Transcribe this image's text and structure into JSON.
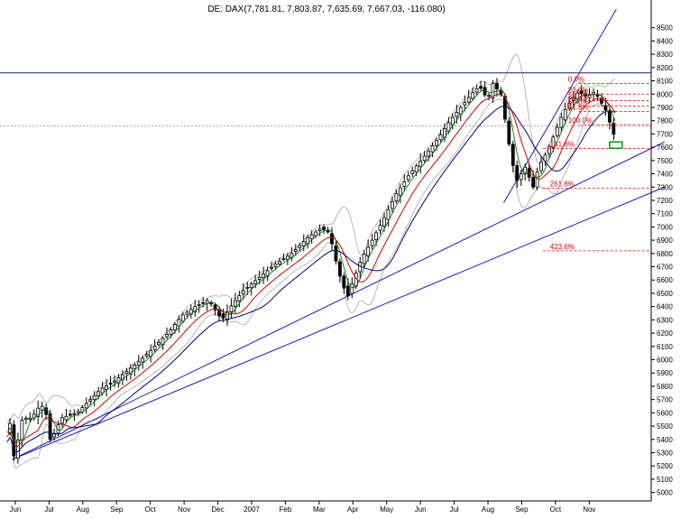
{
  "chart_data": {
    "type": "candlestick",
    "title": "DE: DAX(7,781.81, 7,803.87, 7,635.69, 7,667.03, -116.080)",
    "ylim": [
      4950,
      8600
    ],
    "y_ticks": [
      5000,
      5100,
      5200,
      5300,
      5400,
      5500,
      5600,
      5700,
      5800,
      5900,
      6000,
      6100,
      6200,
      6300,
      6400,
      6500,
      6600,
      6700,
      6800,
      6900,
      7000,
      7100,
      7200,
      7300,
      7400,
      7500,
      7600,
      7700,
      7800,
      7900,
      8000,
      8100,
      8200,
      8300,
      8400,
      8500
    ],
    "x_labels": [
      "Jun",
      "Jul",
      "Aug",
      "Sep",
      "Oct",
      "Nov",
      "Dec",
      "2007",
      "Feb",
      "Mar",
      "Apr",
      "May",
      "Jun",
      "Jul",
      "Aug",
      "Sep",
      "Oct",
      "Nov"
    ],
    "grid": false,
    "colors": {
      "candle": "#000000",
      "ma_short": "#008000",
      "ma_mid": "#d00000",
      "ma_long": "#000080",
      "bands": "#a8a8a8",
      "trendline": "#1a1acc",
      "fib": "#e00000",
      "box": "#00a000"
    },
    "price_path": [
      {
        "t": 0,
        "v": 5450
      },
      {
        "t": 2,
        "v": 5520
      },
      {
        "t": 4,
        "v": 5300
      },
      {
        "t": 6,
        "v": 5250
      },
      {
        "t": 10,
        "v": 5540
      },
      {
        "t": 14,
        "v": 5560
      },
      {
        "t": 18,
        "v": 5560
      },
      {
        "t": 24,
        "v": 5650
      },
      {
        "t": 28,
        "v": 5650
      },
      {
        "t": 32,
        "v": 5400
      },
      {
        "t": 36,
        "v": 5460
      },
      {
        "t": 40,
        "v": 5560
      },
      {
        "t": 46,
        "v": 5580
      },
      {
        "t": 52,
        "v": 5600
      },
      {
        "t": 60,
        "v": 5680
      },
      {
        "t": 70,
        "v": 5780
      },
      {
        "t": 80,
        "v": 5840
      },
      {
        "t": 90,
        "v": 5920
      },
      {
        "t": 100,
        "v": 6000
      },
      {
        "t": 110,
        "v": 6100
      },
      {
        "t": 120,
        "v": 6200
      },
      {
        "t": 130,
        "v": 6330
      },
      {
        "t": 140,
        "v": 6400
      },
      {
        "t": 150,
        "v": 6450
      },
      {
        "t": 160,
        "v": 6300
      },
      {
        "t": 168,
        "v": 6420
      },
      {
        "t": 176,
        "v": 6520
      },
      {
        "t": 188,
        "v": 6620
      },
      {
        "t": 200,
        "v": 6720
      },
      {
        "t": 212,
        "v": 6800
      },
      {
        "t": 224,
        "v": 6920
      },
      {
        "t": 234,
        "v": 6990
      },
      {
        "t": 240,
        "v": 6960
      },
      {
        "t": 246,
        "v": 6700
      },
      {
        "t": 250,
        "v": 6560
      },
      {
        "t": 254,
        "v": 6480
      },
      {
        "t": 258,
        "v": 6600
      },
      {
        "t": 264,
        "v": 6760
      },
      {
        "t": 272,
        "v": 6900
      },
      {
        "t": 280,
        "v": 7050
      },
      {
        "t": 290,
        "v": 7250
      },
      {
        "t": 300,
        "v": 7400
      },
      {
        "t": 310,
        "v": 7520
      },
      {
        "t": 320,
        "v": 7650
      },
      {
        "t": 330,
        "v": 7800
      },
      {
        "t": 338,
        "v": 7900
      },
      {
        "t": 346,
        "v": 8000
      },
      {
        "t": 352,
        "v": 8060
      },
      {
        "t": 358,
        "v": 7960
      },
      {
        "t": 362,
        "v": 8080
      },
      {
        "t": 368,
        "v": 8000
      },
      {
        "t": 372,
        "v": 7750
      },
      {
        "t": 376,
        "v": 7500
      },
      {
        "t": 380,
        "v": 7350
      },
      {
        "t": 386,
        "v": 7450
      },
      {
        "t": 392,
        "v": 7300
      },
      {
        "t": 396,
        "v": 7450
      },
      {
        "t": 402,
        "v": 7560
      },
      {
        "t": 408,
        "v": 7700
      },
      {
        "t": 414,
        "v": 7850
      },
      {
        "t": 420,
        "v": 7950
      },
      {
        "t": 426,
        "v": 8020
      },
      {
        "t": 432,
        "v": 7980
      },
      {
        "t": 438,
        "v": 8020
      },
      {
        "t": 442,
        "v": 7950
      },
      {
        "t": 446,
        "v": 7880
      },
      {
        "t": 450,
        "v": 7760
      },
      {
        "t": 453,
        "v": 7667
      }
    ],
    "resistance_level": 8160,
    "dotted_level": 7760,
    "trendlines": [
      {
        "start": {
          "t": 4,
          "v": 5250
        },
        "end": {
          "t": 490,
          "v": 7640
        }
      },
      {
        "start": {
          "t": 4,
          "v": 5250
        },
        "end": {
          "t": 490,
          "v": 7300
        }
      },
      {
        "start": {
          "t": 370,
          "v": 7180
        },
        "end": {
          "t": 454,
          "v": 8640
        }
      }
    ],
    "fibonacci": {
      "levels": [
        {
          "label": "0.0%",
          "value": 8080
        },
        {
          "label": "23.6%",
          "value": 8000
        },
        {
          "label": "38.2%",
          "value": 7950
        },
        {
          "label": "50.0%",
          "value": 7910
        },
        {
          "label": "61.8%",
          "value": 7870
        },
        {
          "label": "100.0%",
          "value": 7770
        },
        {
          "label": "161.8%",
          "value": 7590
        },
        {
          "label": "261.8%",
          "value": 7290
        },
        {
          "label": "423.6%",
          "value": 6820
        }
      ]
    },
    "candles": [
      {
        "o": 5470,
        "h": 5500,
        "l": 5380,
        "c": 5400
      },
      {
        "o": 5400,
        "h": 5480,
        "l": 5360,
        "c": 5450
      },
      {
        "o": 5450,
        "h": 5620,
        "l": 5440,
        "c": 5560
      },
      {
        "o": 5560,
        "h": 5700,
        "l": 5540,
        "c": 5650
      },
      {
        "o": 5650,
        "h": 5680,
        "l": 5580,
        "c": 5600
      },
      {
        "o": 5600,
        "h": 5720,
        "l": 5600,
        "c": 5700
      },
      {
        "o": 5700,
        "h": 5760,
        "l": 5640,
        "c": 5660
      },
      {
        "o": 5660,
        "h": 5820,
        "l": 5650,
        "c": 5800
      },
      {
        "o": 5800,
        "h": 5860,
        "l": 5760,
        "c": 5840
      },
      {
        "o": 5840,
        "h": 5900,
        "l": 5800,
        "c": 5870
      },
      {
        "o": 5870,
        "h": 5960,
        "l": 5850,
        "c": 5940
      },
      {
        "o": 5940,
        "h": 6020,
        "l": 5920,
        "c": 6000
      },
      {
        "o": 6000,
        "h": 6080,
        "l": 5980,
        "c": 6060
      },
      {
        "o": 6060,
        "h": 6160,
        "l": 6040,
        "c": 6140
      },
      {
        "o": 6140,
        "h": 6230,
        "l": 6120,
        "c": 6200
      },
      {
        "o": 6200,
        "h": 6320,
        "l": 6180,
        "c": 6300
      },
      {
        "o": 6300,
        "h": 6420,
        "l": 6280,
        "c": 6390
      },
      {
        "o": 6390,
        "h": 6470,
        "l": 6360,
        "c": 6440
      },
      {
        "o": 6440,
        "h": 6480,
        "l": 6280,
        "c": 6320
      },
      {
        "o": 6320,
        "h": 6470,
        "l": 6300,
        "c": 6450
      },
      {
        "o": 6450,
        "h": 6560,
        "l": 6430,
        "c": 6540
      },
      {
        "o": 6540,
        "h": 6680,
        "l": 6520,
        "c": 6660
      },
      {
        "o": 6660,
        "h": 6760,
        "l": 6640,
        "c": 6740
      },
      {
        "o": 6740,
        "h": 6840,
        "l": 6720,
        "c": 6820
      },
      {
        "o": 6820,
        "h": 6960,
        "l": 6800,
        "c": 6940
      },
      {
        "o": 6940,
        "h": 7040,
        "l": 6920,
        "c": 7000
      },
      {
        "o": 7000,
        "h": 7020,
        "l": 6700,
        "c": 6750
      },
      {
        "o": 6750,
        "h": 6780,
        "l": 6460,
        "c": 6520
      },
      {
        "o": 6520,
        "h": 6700,
        "l": 6480,
        "c": 6680
      },
      {
        "o": 6680,
        "h": 6900,
        "l": 6660,
        "c": 6880
      },
      {
        "o": 6880,
        "h": 7100,
        "l": 6860,
        "c": 7080
      },
      {
        "o": 7080,
        "h": 7300,
        "l": 7060,
        "c": 7280
      },
      {
        "o": 7280,
        "h": 7460,
        "l": 7260,
        "c": 7440
      },
      {
        "o": 7440,
        "h": 7600,
        "l": 7420,
        "c": 7580
      },
      {
        "o": 7580,
        "h": 7760,
        "l": 7560,
        "c": 7740
      },
      {
        "o": 7740,
        "h": 7920,
        "l": 7720,
        "c": 7900
      },
      {
        "o": 7900,
        "h": 8080,
        "l": 7880,
        "c": 8040
      },
      {
        "o": 8040,
        "h": 8100,
        "l": 7880,
        "c": 7920
      },
      {
        "o": 7920,
        "h": 8160,
        "l": 7900,
        "c": 8080
      },
      {
        "o": 8080,
        "h": 8120,
        "l": 7700,
        "c": 7760
      },
      {
        "o": 7760,
        "h": 7800,
        "l": 7300,
        "c": 7380
      },
      {
        "o": 7380,
        "h": 7560,
        "l": 7220,
        "c": 7460
      },
      {
        "o": 7460,
        "h": 7500,
        "l": 7280,
        "c": 7320
      },
      {
        "o": 7320,
        "h": 7600,
        "l": 7300,
        "c": 7560
      },
      {
        "o": 7560,
        "h": 7800,
        "l": 7540,
        "c": 7780
      },
      {
        "o": 7780,
        "h": 7980,
        "l": 7760,
        "c": 7960
      },
      {
        "o": 7960,
        "h": 8060,
        "l": 7940,
        "c": 8020
      },
      {
        "o": 8020,
        "h": 8060,
        "l": 7940,
        "c": 7980
      },
      {
        "o": 7980,
        "h": 8050,
        "l": 7860,
        "c": 7880
      },
      {
        "o": 7880,
        "h": 7900,
        "l": 7660,
        "c": 7680
      }
    ]
  }
}
